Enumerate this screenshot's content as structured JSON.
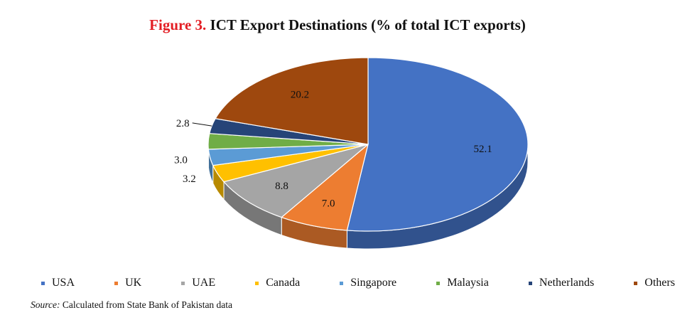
{
  "title": {
    "prefix": "Figure 3.",
    "text": "ICT Export Destinations (% of total ICT exports)"
  },
  "source": {
    "label": "Source:",
    "text": "Calculated from State Bank of Pakistan data"
  },
  "chart_data": {
    "type": "pie",
    "style": "3d",
    "title": "Figure 3. ICT Export Destinations (% of total ICT exports)",
    "legend_position": "bottom",
    "categories": [
      "USA",
      "UK",
      "UAE",
      "Canada",
      "Singapore",
      "Malaysia",
      "Netherlands",
      "Others"
    ],
    "values": [
      52.1,
      7.0,
      8.8,
      3.2,
      3.0,
      2.9,
      2.8,
      20.2
    ],
    "data_labels": [
      "52.1",
      "7.0",
      "8.8",
      "3.2",
      "3.0",
      "",
      "2.8",
      "20.2"
    ],
    "colors": [
      "#4472c4",
      "#ed7d31",
      "#a5a5a5",
      "#ffc000",
      "#5b9bd5",
      "#70ad47",
      "#264478",
      "#9e480e"
    ]
  }
}
